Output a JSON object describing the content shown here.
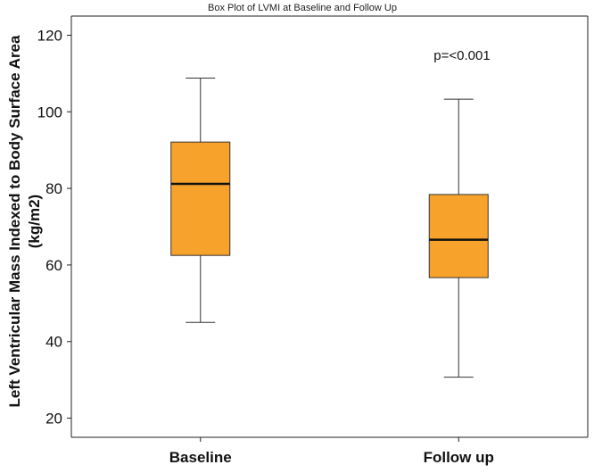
{
  "chart_data": {
    "type": "box",
    "title": "Box Plot of LVMI at Baseline and Follow Up",
    "ylabel_line1": "Left Ventricular Mass Indexed to Body Surface Area",
    "ylabel_line2": "(kg/m2)",
    "xlabel": "",
    "ylim": [
      15,
      125
    ],
    "yticks": [
      20,
      40,
      60,
      80,
      100,
      120
    ],
    "grid": false,
    "box_color": "#F7A22A",
    "categories": [
      "Baseline",
      "Follow up"
    ],
    "boxes": [
      {
        "category": "Baseline",
        "min": 45,
        "q1": 62.5,
        "median": 81.2,
        "q3": 92.1,
        "max": 108.8
      },
      {
        "category": "Follow up",
        "min": 30.7,
        "q1": 56.7,
        "median": 66.6,
        "q3": 78.4,
        "max": 103.3
      }
    ],
    "annotation": "p=<0.001"
  }
}
